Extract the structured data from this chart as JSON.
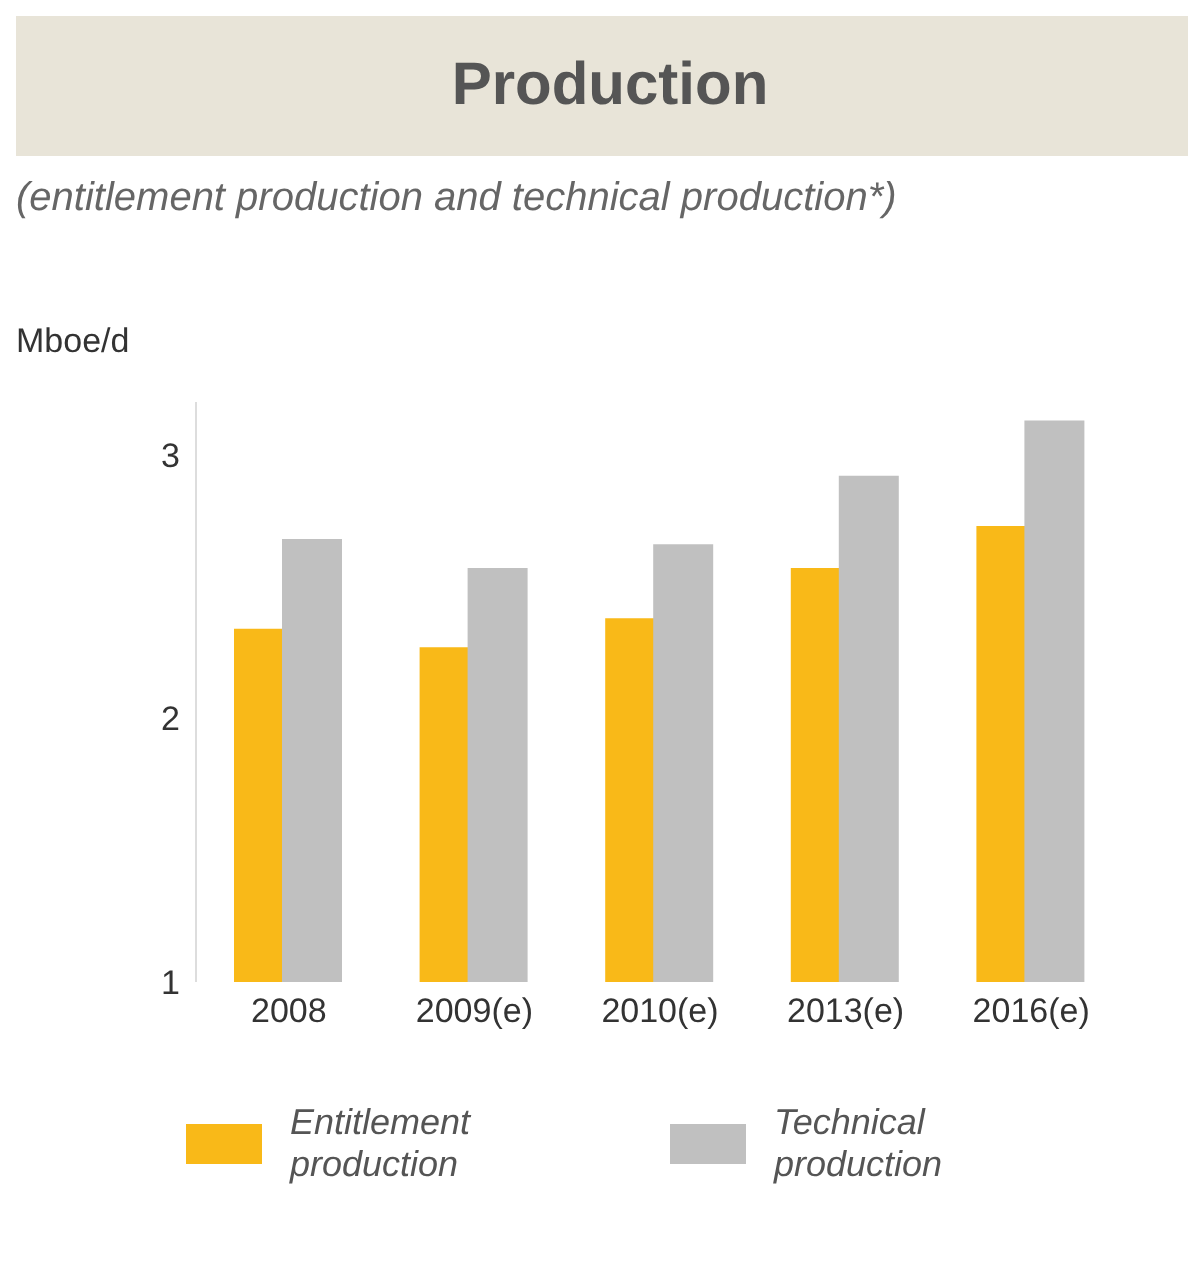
{
  "chart_data": {
    "type": "bar",
    "title": "Production",
    "subtitle": "(entitlement production and technical production*)",
    "ylabel": "Mboe/d",
    "categories": [
      "2008",
      "2009(e)",
      "2010(e)",
      "2013(e)",
      "2016(e)"
    ],
    "series": [
      {
        "name": "Entitlement production",
        "color": "#f9b918",
        "values": [
          2.34,
          2.27,
          2.38,
          2.57,
          2.73
        ]
      },
      {
        "name": "Technical production",
        "color": "#c0c0c0",
        "values": [
          2.68,
          2.57,
          2.66,
          2.92,
          3.13
        ]
      }
    ],
    "ylim": [
      1,
      3.2
    ],
    "yticks": [
      1,
      2,
      3
    ],
    "legend": "bottom"
  }
}
